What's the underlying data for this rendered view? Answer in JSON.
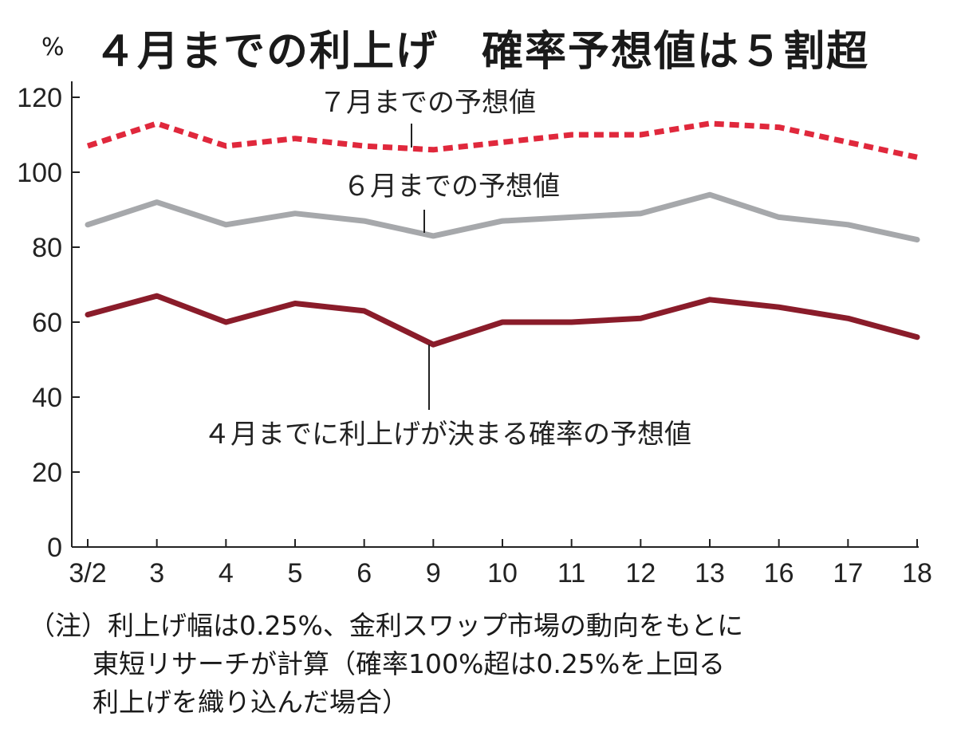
{
  "header": {
    "unit": "%",
    "title": "４月までの利上げ　確率予想値は５割超"
  },
  "chart_data": {
    "type": "line",
    "categories": [
      "3/2",
      "3",
      "4",
      "5",
      "6",
      "9",
      "10",
      "11",
      "12",
      "13",
      "16",
      "17",
      "18"
    ],
    "ylim": [
      0,
      120
    ],
    "yticks": [
      "0",
      "20",
      "40",
      "60",
      "80",
      "100",
      "120"
    ],
    "grid": false,
    "series": [
      {
        "name": "７月までの予想値",
        "color": "#e0283c",
        "style": "dashed",
        "values": [
          107,
          113,
          107,
          109,
          107,
          106,
          108,
          110,
          110,
          113,
          112,
          108,
          104
        ]
      },
      {
        "name": "６月までの予想値",
        "color": "#a6a8ab",
        "style": "solid",
        "values": [
          86,
          92,
          86,
          89,
          87,
          83,
          87,
          88,
          89,
          94,
          88,
          86,
          82
        ]
      },
      {
        "name": "４月までに利上げが決まる確率の予想値",
        "color": "#8a1c2a",
        "style": "solid",
        "values": [
          62,
          67,
          60,
          65,
          63,
          54,
          60,
          60,
          61,
          66,
          64,
          61,
          56
        ]
      }
    ]
  },
  "notes": {
    "line1": "（注）利上げ幅は0.25%、金利スワップ市場の動向をもとに",
    "line2": "東短リサーチが計算（確率100%超は0.25%を上回る",
    "line3": "利上げを織り込んだ場合）"
  }
}
